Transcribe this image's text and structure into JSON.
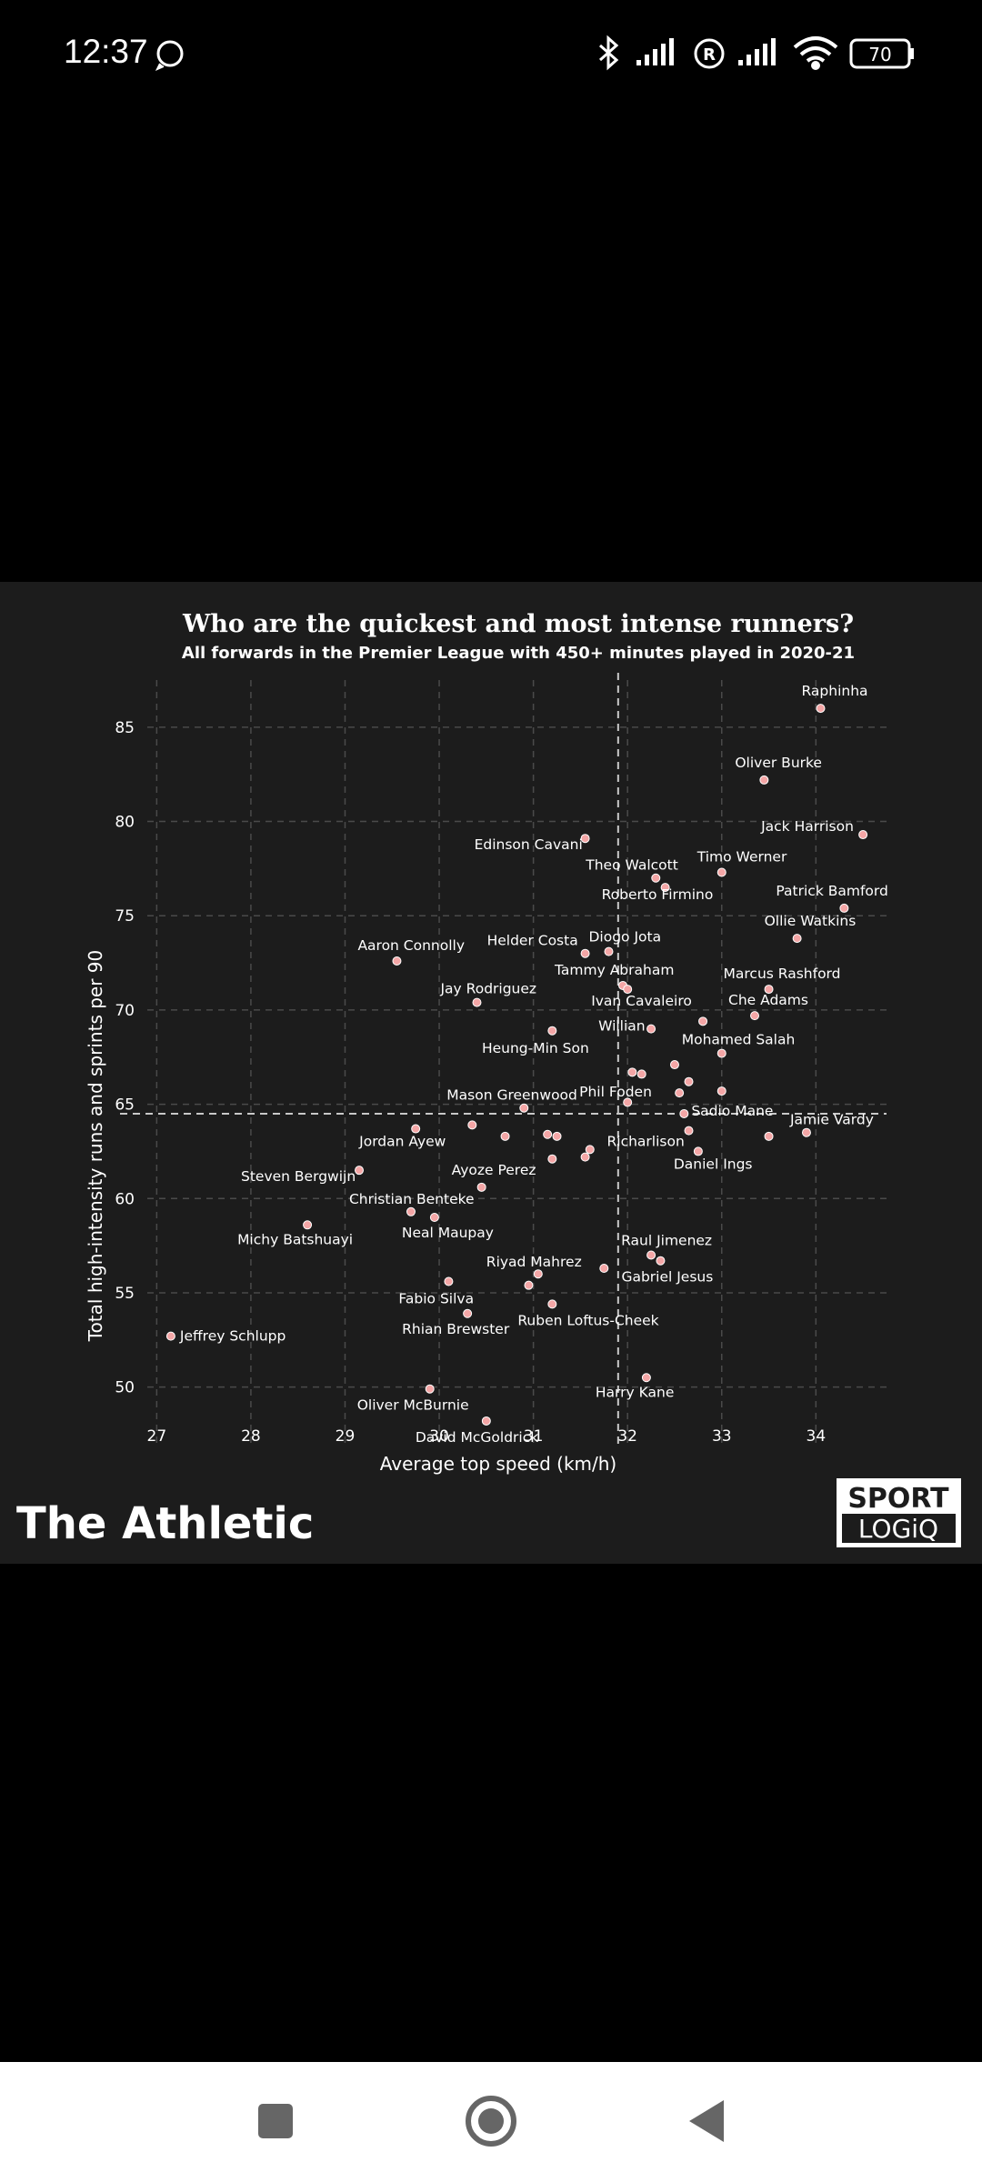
{
  "status_bar": {
    "time": "12:37",
    "battery": "70",
    "icons": [
      "whatsapp-icon",
      "bluetooth-icon",
      "signal-icon",
      "registered-icon",
      "signal-icon",
      "wifi-icon",
      "battery-icon"
    ]
  },
  "chart": {
    "title": "Who are the quickest and most intense runners?",
    "subtitle": "All forwards in the Premier League with 450+ minutes played in 2020-21",
    "brand_left": "The Athletic",
    "brand_right_line1": "SPORT",
    "brand_right_line2": "LOGiQ"
  },
  "chart_data": {
    "type": "scatter",
    "title": "Who are the quickest and most intense runners?",
    "subtitle": "All forwards in the Premier League with 450+ minutes played in 2020-21",
    "xlabel": "Average top speed (km/h)",
    "ylabel": "Total high-intensity runs and sprints per 90",
    "xlim": [
      26.9,
      34.75
    ],
    "ylim": [
      46.8,
      87.5
    ],
    "xticks": [
      27,
      28,
      29,
      30,
      31,
      32,
      33,
      34
    ],
    "yticks": [
      50,
      55,
      60,
      65,
      70,
      75,
      80,
      85
    ],
    "grid": true,
    "reference_lines": {
      "x": 31.9,
      "y": 64.5
    },
    "point_color": "#f4a6a6",
    "points": [
      {
        "label": "Raphinha",
        "x": 34.05,
        "y": 86.0
      },
      {
        "label": "Oliver Burke",
        "x": 33.45,
        "y": 82.2
      },
      {
        "label": "Jack Harrison",
        "x": 34.5,
        "y": 79.3
      },
      {
        "label": "Edinson Cavani",
        "x": 31.55,
        "y": 79.1
      },
      {
        "label": "Timo Werner",
        "x": 33.0,
        "y": 77.3
      },
      {
        "label": "Theo Walcott",
        "x": 32.3,
        "y": 77.0
      },
      {
        "label": "Roberto Firmino",
        "x": 32.4,
        "y": 76.5
      },
      {
        "label": "Patrick Bamford",
        "x": 34.3,
        "y": 75.4
      },
      {
        "label": "Ollie Watkins",
        "x": 33.8,
        "y": 73.8
      },
      {
        "label": "Helder Costa",
        "x": 31.55,
        "y": 73.0
      },
      {
        "label": "Diogo Jota",
        "x": 31.8,
        "y": 73.1
      },
      {
        "label": "Aaron Connolly",
        "x": 29.55,
        "y": 72.6
      },
      {
        "label": "Tammy Abraham",
        "x": 31.95,
        "y": 71.3
      },
      {
        "label": "Marcus Rashford",
        "x": 33.5,
        "y": 71.1
      },
      {
        "label": "Jay Rodriguez",
        "x": 30.4,
        "y": 70.4
      },
      {
        "label": "Ivan Cavaleiro",
        "x": 32.0,
        "y": 71.1
      },
      {
        "label": "Che Adams",
        "x": 33.35,
        "y": 69.7
      },
      {
        "label": "",
        "x": 32.8,
        "y": 69.4
      },
      {
        "label": "Willian",
        "x": 32.25,
        "y": 69.0
      },
      {
        "label": "",
        "x": 31.2,
        "y": 68.9
      },
      {
        "label": "Mohamed Salah",
        "x": 33.0,
        "y": 67.7
      },
      {
        "label": "Heung-Min Son",
        "x": 32.5,
        "y": 67.1
      },
      {
        "label": "",
        "x": 32.05,
        "y": 66.7
      },
      {
        "label": "",
        "x": 32.15,
        "y": 66.6
      },
      {
        "label": "",
        "x": 32.65,
        "y": 66.2
      },
      {
        "label": "Phil Foden",
        "x": 32.55,
        "y": 65.6
      },
      {
        "label": "",
        "x": 33.0,
        "y": 65.7
      },
      {
        "label": "Mason Greenwood",
        "x": 30.9,
        "y": 64.8
      },
      {
        "label": "",
        "x": 32.0,
        "y": 65.1
      },
      {
        "label": "Sadio Mane",
        "x": 32.6,
        "y": 64.5
      },
      {
        "label": "Jamie Vardy",
        "x": 33.9,
        "y": 63.5
      },
      {
        "label": "",
        "x": 33.5,
        "y": 63.3
      },
      {
        "label": "Jordan Ayew",
        "x": 29.75,
        "y": 63.7
      },
      {
        "label": "",
        "x": 30.35,
        "y": 63.9
      },
      {
        "label": "",
        "x": 30.7,
        "y": 63.3
      },
      {
        "label": "",
        "x": 31.15,
        "y": 63.4
      },
      {
        "label": "",
        "x": 31.25,
        "y": 63.3
      },
      {
        "label": "Richarlison",
        "x": 32.65,
        "y": 63.6
      },
      {
        "label": "",
        "x": 31.6,
        "y": 62.6
      },
      {
        "label": "",
        "x": 31.55,
        "y": 62.2
      },
      {
        "label": "",
        "x": 31.2,
        "y": 62.1
      },
      {
        "label": "Daniel Ings",
        "x": 32.75,
        "y": 62.5
      },
      {
        "label": "Steven Bergwijn",
        "x": 29.15,
        "y": 61.5
      },
      {
        "label": "Ayoze Perez",
        "x": 30.45,
        "y": 60.6
      },
      {
        "label": "Christian Benteke",
        "x": 29.7,
        "y": 59.3
      },
      {
        "label": "Neal Maupay",
        "x": 29.95,
        "y": 59.0
      },
      {
        "label": "Michy Batshuayi",
        "x": 28.6,
        "y": 58.6
      },
      {
        "label": "Raul Jimenez",
        "x": 32.25,
        "y": 57.0
      },
      {
        "label": "Gabriel Jesus",
        "x": 32.35,
        "y": 56.7
      },
      {
        "label": "Riyad Mahrez",
        "x": 31.05,
        "y": 56.0
      },
      {
        "label": "",
        "x": 31.75,
        "y": 56.3
      },
      {
        "label": "Fabio Silva",
        "x": 30.1,
        "y": 55.6
      },
      {
        "label": "",
        "x": 30.95,
        "y": 55.4
      },
      {
        "label": "Ruben Loftus-Cheek",
        "x": 31.2,
        "y": 54.4
      },
      {
        "label": "Rhian Brewster",
        "x": 30.3,
        "y": 53.9
      },
      {
        "label": "Jeffrey Schlupp",
        "x": 27.15,
        "y": 52.7
      },
      {
        "label": "Harry Kane",
        "x": 32.2,
        "y": 50.5
      },
      {
        "label": "Oliver McBurnie",
        "x": 29.9,
        "y": 49.9
      },
      {
        "label": "David McGoldrick",
        "x": 30.5,
        "y": 48.2
      }
    ]
  }
}
